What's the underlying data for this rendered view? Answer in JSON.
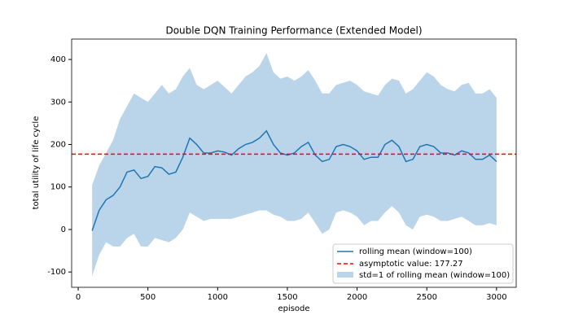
{
  "chart_data": {
    "type": "line",
    "title": "Double DQN Training Performance (Extended Model)",
    "xlabel": "episode",
    "ylabel": "total utility of life cycle",
    "x": [
      100,
      150,
      200,
      250,
      300,
      350,
      400,
      450,
      500,
      550,
      600,
      650,
      700,
      750,
      800,
      850,
      900,
      950,
      1000,
      1050,
      1100,
      1150,
      1200,
      1250,
      1300,
      1350,
      1400,
      1450,
      1500,
      1550,
      1600,
      1650,
      1700,
      1750,
      1800,
      1850,
      1900,
      1950,
      2000,
      2050,
      2100,
      2150,
      2200,
      2250,
      2300,
      2350,
      2400,
      2450,
      2500,
      2550,
      2600,
      2650,
      2700,
      2750,
      2800,
      2850,
      2900,
      2950,
      3000
    ],
    "series": [
      {
        "name": "rolling mean (window=100)",
        "color": "#1f77b4",
        "values": [
          -3,
          45,
          70,
          80,
          100,
          135,
          140,
          120,
          125,
          148,
          145,
          130,
          135,
          170,
          215,
          200,
          180,
          180,
          185,
          182,
          175,
          190,
          200,
          205,
          215,
          232,
          200,
          180,
          175,
          180,
          195,
          205,
          175,
          160,
          165,
          195,
          200,
          195,
          185,
          165,
          170,
          170,
          200,
          210,
          195,
          160,
          165,
          195,
          200,
          195,
          180,
          180,
          175,
          185,
          180,
          165,
          165,
          175,
          160
        ]
      }
    ],
    "band": {
      "name": "std=1 of rolling mean (window=100)",
      "color": "#bad4e9",
      "upper": [
        105,
        150,
        180,
        210,
        260,
        290,
        320,
        310,
        300,
        320,
        340,
        320,
        330,
        360,
        380,
        340,
        330,
        340,
        350,
        335,
        320,
        340,
        360,
        370,
        385,
        415,
        370,
        355,
        360,
        350,
        360,
        375,
        350,
        320,
        320,
        340,
        345,
        350,
        340,
        325,
        320,
        315,
        340,
        355,
        350,
        320,
        330,
        350,
        370,
        360,
        340,
        330,
        325,
        340,
        345,
        320,
        320,
        330,
        310
      ],
      "lower": [
        -110,
        -60,
        -30,
        -40,
        -40,
        -20,
        -10,
        -40,
        -40,
        -20,
        -25,
        -30,
        -20,
        0,
        40,
        30,
        20,
        25,
        25,
        25,
        25,
        30,
        35,
        40,
        45,
        45,
        35,
        30,
        20,
        20,
        25,
        40,
        15,
        -10,
        0,
        40,
        45,
        40,
        30,
        10,
        20,
        20,
        40,
        55,
        40,
        10,
        0,
        30,
        35,
        30,
        20,
        20,
        25,
        30,
        20,
        10,
        10,
        15,
        10
      ]
    },
    "hline": {
      "name": "asymptotic value: 177.27",
      "value": 177.27,
      "color": "#ff0000"
    },
    "xlim": [
      -47,
      3141
    ],
    "ylim": [
      -136,
      448
    ],
    "xticks": [
      0,
      500,
      1000,
      1500,
      2000,
      2500,
      3000
    ],
    "yticks": [
      -100,
      0,
      100,
      200,
      300,
      400
    ],
    "legend": "lower right"
  }
}
